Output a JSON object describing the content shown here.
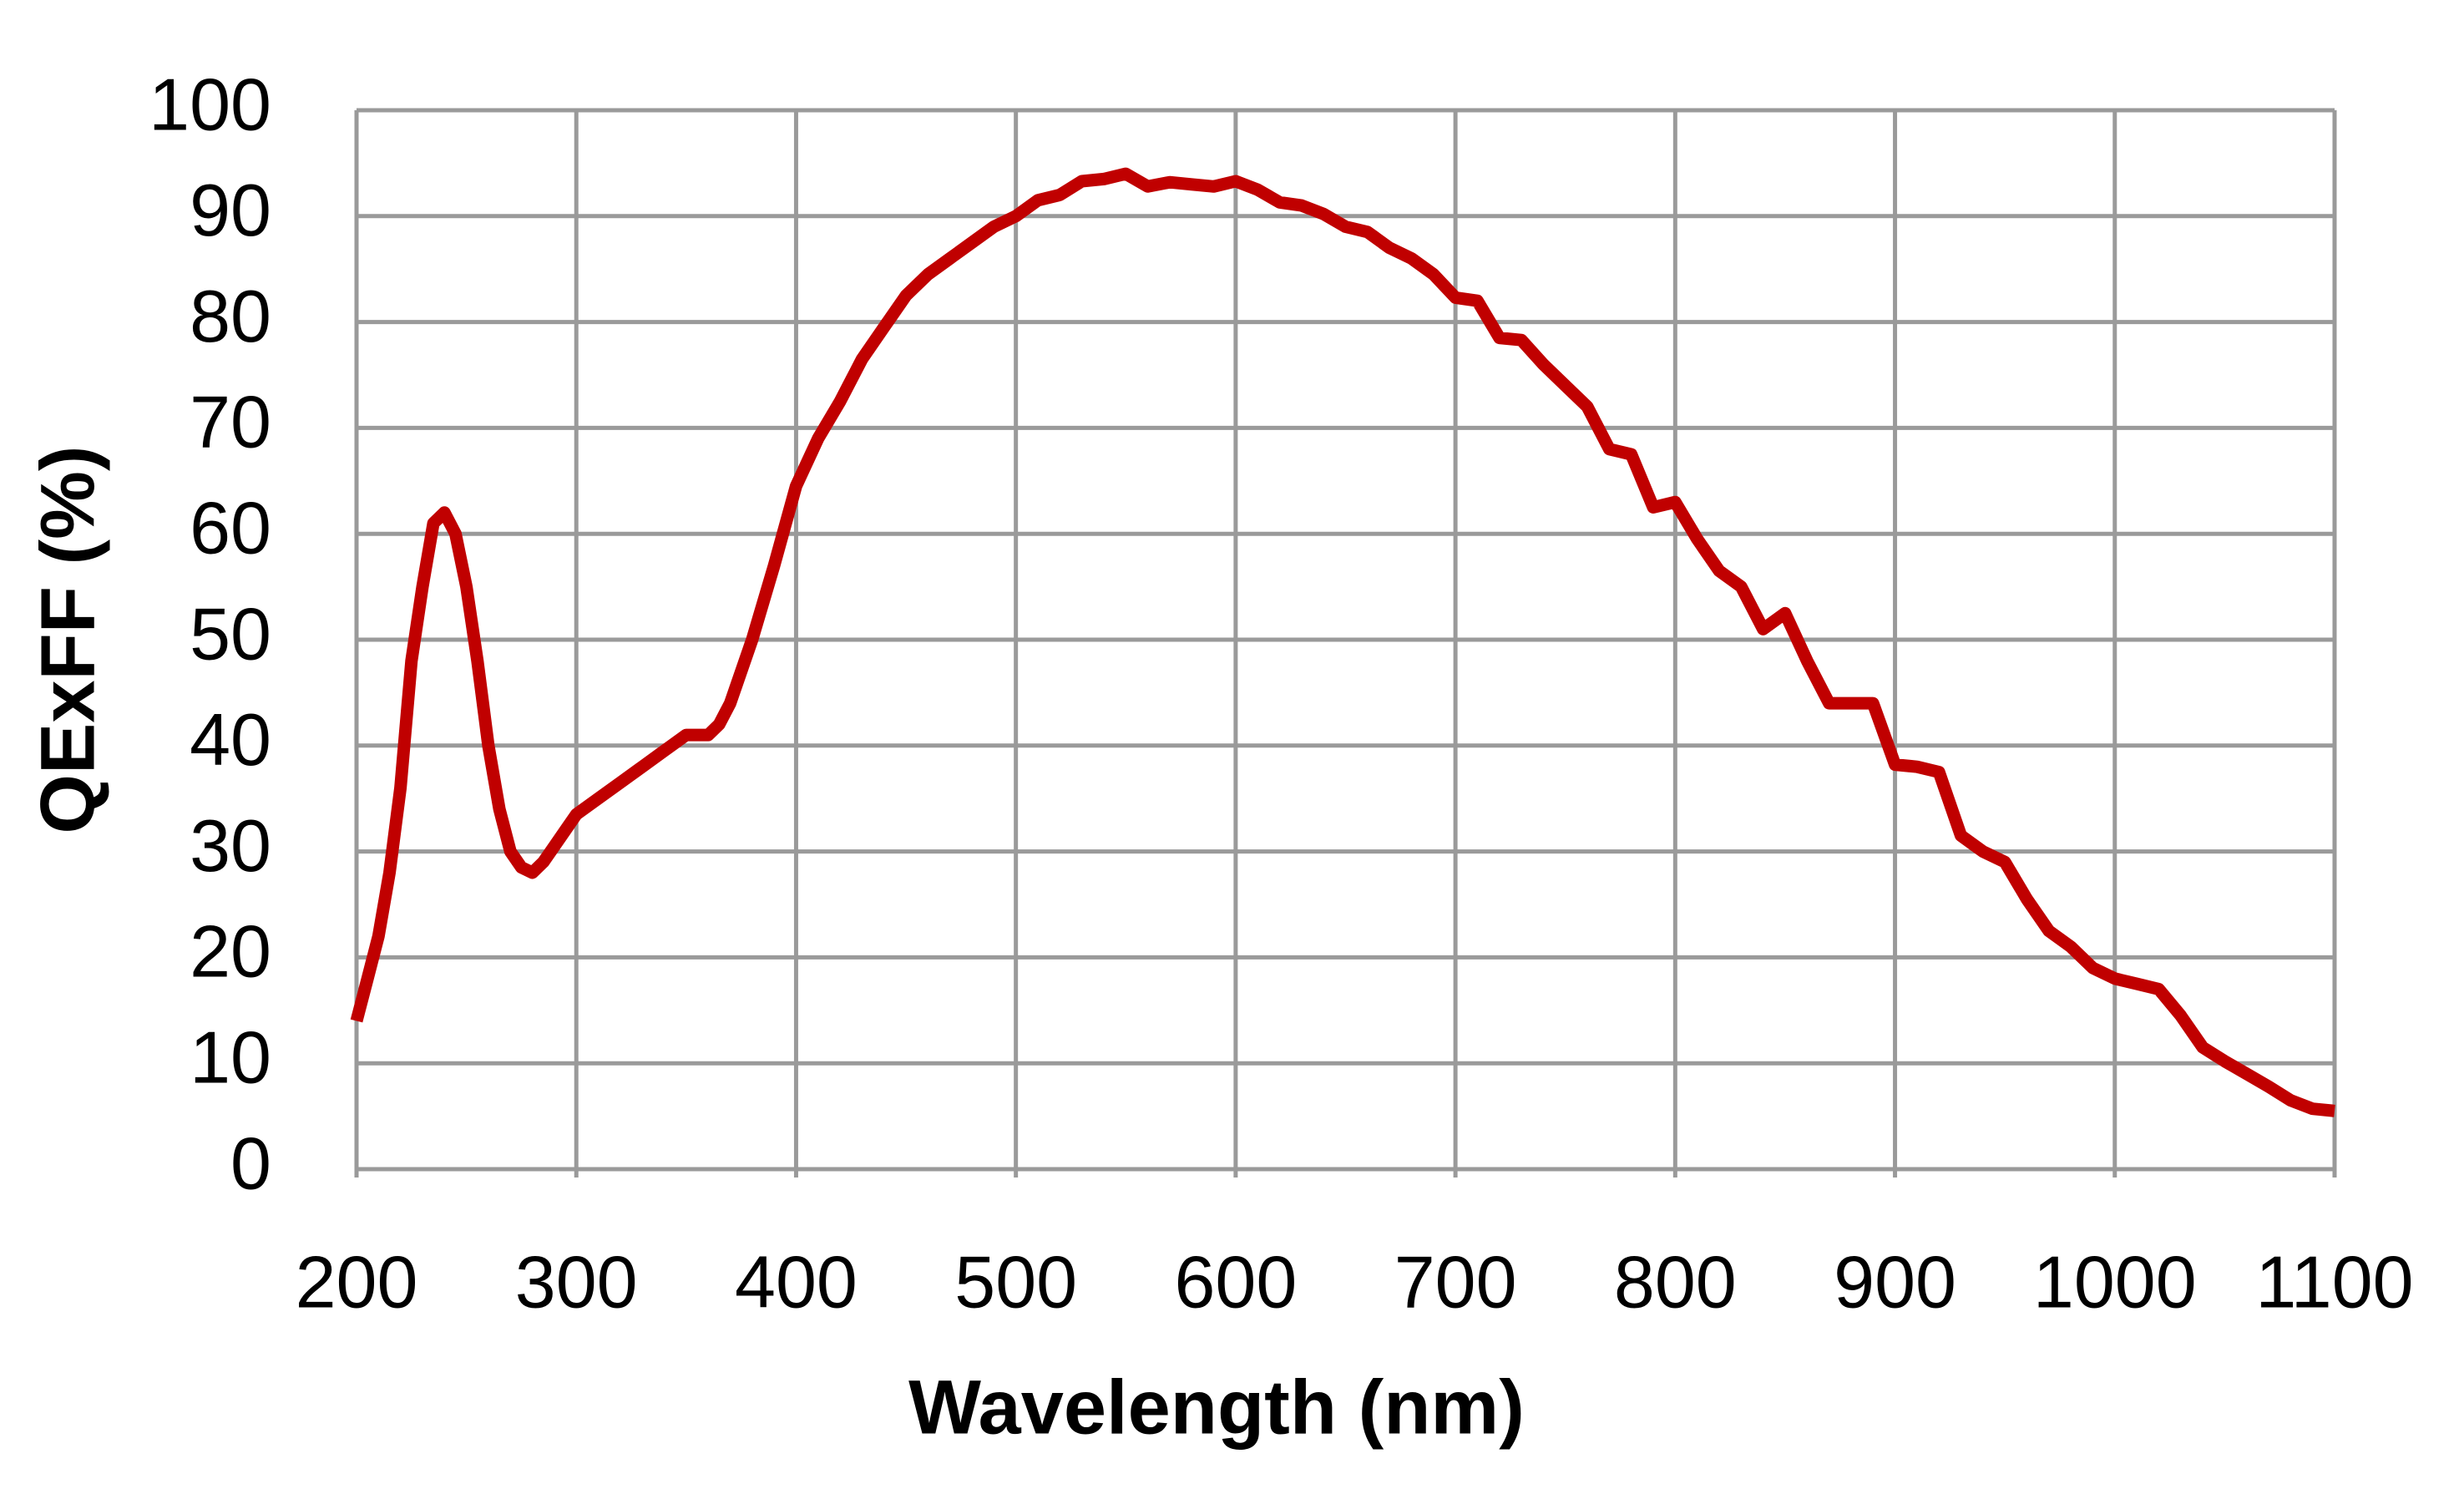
{
  "chart_data": {
    "type": "line",
    "xlabel": "Wavelength (nm)",
    "ylabel": "QExFF (%)",
    "x": [
      200,
      205,
      210,
      215,
      220,
      225,
      230,
      235,
      240,
      245,
      250,
      255,
      260,
      265,
      270,
      275,
      280,
      285,
      290,
      295,
      300,
      310,
      320,
      330,
      340,
      350,
      360,
      365,
      370,
      380,
      390,
      400,
      410,
      420,
      430,
      440,
      450,
      460,
      470,
      480,
      490,
      500,
      510,
      520,
      530,
      540,
      550,
      560,
      570,
      580,
      590,
      600,
      610,
      620,
      630,
      640,
      650,
      660,
      670,
      680,
      690,
      700,
      710,
      720,
      730,
      740,
      750,
      760,
      770,
      780,
      790,
      800,
      810,
      820,
      830,
      840,
      850,
      860,
      870,
      880,
      890,
      900,
      910,
      920,
      930,
      940,
      950,
      960,
      970,
      980,
      990,
      1000,
      1010,
      1020,
      1030,
      1040,
      1050,
      1060,
      1070,
      1080,
      1090,
      1100
    ],
    "series": [
      {
        "name": "QExFF",
        "color": "#c00000",
        "values": [
          14,
          18,
          22,
          28,
          36,
          48,
          55,
          61,
          62,
          60,
          55,
          48,
          40,
          34,
          30,
          28.5,
          28,
          29,
          30.5,
          32,
          33.5,
          35,
          36.5,
          38,
          39.5,
          41,
          41,
          42,
          44,
          50,
          57,
          64.5,
          69,
          72.5,
          76.5,
          79.5,
          82.5,
          84.5,
          86,
          87.5,
          89,
          90,
          91.5,
          92,
          93.3,
          93.5,
          94,
          92.8,
          93.2,
          93,
          92.8,
          93.3,
          92.5,
          91.3,
          91,
          90.2,
          89,
          88.5,
          87,
          86,
          84.5,
          82.3,
          82,
          78.5,
          78.3,
          76,
          74,
          72,
          68,
          67.5,
          62.5,
          63,
          59.5,
          56.5,
          55,
          51,
          52.5,
          48,
          44,
          44,
          44,
          38.2,
          38,
          37.5,
          31.5,
          30,
          29,
          25.5,
          22.5,
          21,
          19,
          18,
          17.5,
          17,
          14.5,
          11.5,
          10.2,
          9,
          7.8,
          6.5,
          5.7,
          5.5
        ]
      }
    ],
    "xlim": [
      200,
      1100
    ],
    "ylim": [
      0,
      100
    ],
    "xticks": [
      200,
      300,
      400,
      500,
      600,
      700,
      800,
      900,
      1000,
      1100
    ],
    "yticks": [
      0,
      10,
      20,
      30,
      40,
      50,
      60,
      70,
      80,
      90,
      100
    ],
    "grid": true
  }
}
